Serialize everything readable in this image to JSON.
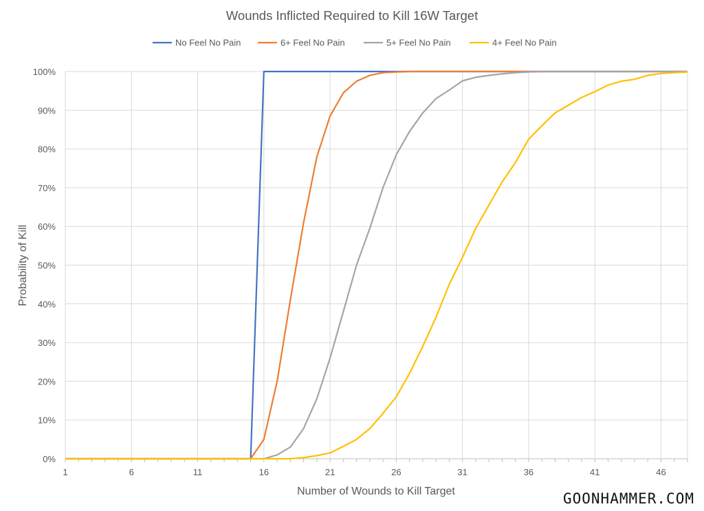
{
  "chart_data": {
    "type": "line",
    "title": "Wounds Inflicted Required to Kill 16W Target",
    "xlabel": "Number of Wounds to Kill Target",
    "ylabel": "Probability of Kill",
    "xlim": [
      1,
      48
    ],
    "ylim": [
      0,
      100
    ],
    "xticks": [
      "1",
      "6",
      "11",
      "16",
      "21",
      "26",
      "31",
      "36",
      "41",
      "46"
    ],
    "yticks": [
      "0%",
      "10%",
      "20%",
      "30%",
      "40%",
      "50%",
      "60%",
      "70%",
      "80%",
      "90%",
      "100%"
    ],
    "grid": true,
    "legend_position": "top",
    "series": [
      {
        "name": "No Feel No Pain",
        "color": "#4472C4",
        "x": [
          1,
          15,
          16,
          48
        ],
        "y": [
          0,
          0,
          100,
          100
        ]
      },
      {
        "name": "6+ Feel No Pain",
        "color": "#ED7D31",
        "x": [
          1,
          15,
          16,
          17,
          18,
          19,
          20,
          21,
          22,
          23,
          24,
          25,
          26,
          27,
          48
        ],
        "y": [
          0,
          0,
          5,
          20,
          41,
          61,
          78,
          88.5,
          94.5,
          97.5,
          99,
          99.7,
          99.9,
          100,
          100
        ]
      },
      {
        "name": "5+ Feel No Pain",
        "color": "#A5A5A5",
        "x": [
          1,
          16,
          17,
          18,
          19,
          20,
          21,
          22,
          23,
          24,
          25,
          26,
          27,
          28,
          29,
          30,
          31,
          32,
          33,
          34,
          35,
          36,
          37,
          48
        ],
        "y": [
          0,
          0,
          1,
          3,
          7.8,
          15.5,
          26,
          38,
          50,
          59.5,
          70,
          78.5,
          84.5,
          89.3,
          93,
          95.2,
          97.6,
          98.5,
          99,
          99.4,
          99.7,
          99.9,
          100,
          100
        ]
      },
      {
        "name": "4+ Feel No Pain",
        "color": "#FFC000",
        "x": [
          1,
          18,
          19,
          20,
          21,
          22,
          23,
          24,
          25,
          26,
          27,
          28,
          29,
          30,
          31,
          32,
          33,
          34,
          35,
          36,
          37,
          38,
          39,
          40,
          41,
          42,
          43,
          44,
          45,
          46,
          47,
          48
        ],
        "y": [
          0,
          0,
          0.3,
          0.8,
          1.5,
          3.2,
          5,
          7.8,
          11.7,
          16,
          22,
          29,
          36.5,
          45,
          52,
          59.5,
          65.5,
          71.5,
          76.5,
          82.5,
          86,
          89.3,
          91.3,
          93.3,
          94.8,
          96.5,
          97.5,
          98,
          99,
          99.5,
          99.7,
          99.9
        ]
      }
    ]
  },
  "watermark": "GOONHAMMER.COM"
}
